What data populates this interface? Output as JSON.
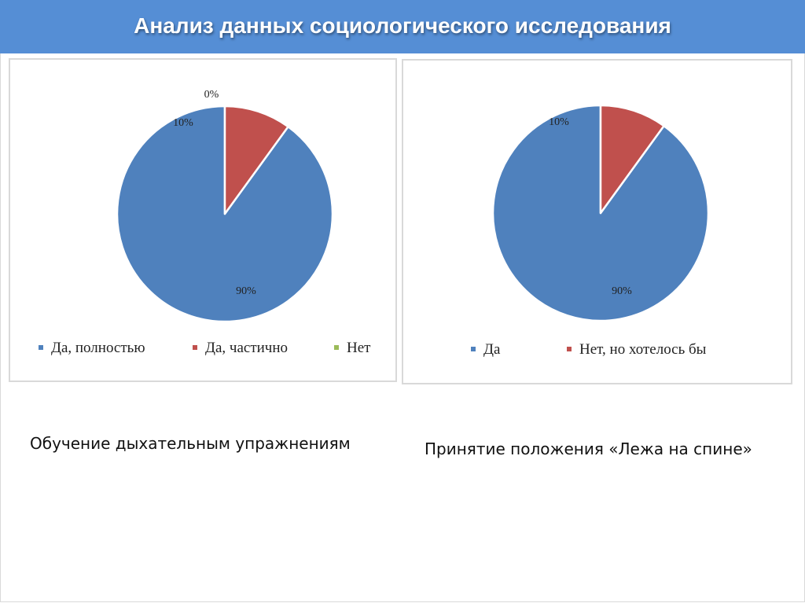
{
  "slide": {
    "title": "Анализ данных социологического исследования",
    "captions": [
      "Обучение дыхательным упражнениям",
      "Принятие положения «Лежа на спине»"
    ]
  },
  "colors": {
    "header": "#558ed5",
    "blue": "#4f81bd",
    "red": "#c0504d",
    "green": "#9bbb59"
  },
  "chart_data": [
    {
      "type": "pie",
      "categories": [
        "Да, полностью",
        "Да, частично",
        "Нет"
      ],
      "values": [
        90,
        10,
        0
      ],
      "labels": [
        "90%",
        "10%",
        "0%"
      ],
      "colors": [
        "#4f81bd",
        "#c0504d",
        "#9bbb59"
      ],
      "legend": "bottom"
    },
    {
      "type": "pie",
      "categories": [
        "Да",
        "Нет, но хотелось бы"
      ],
      "values": [
        90,
        10
      ],
      "labels": [
        "90%",
        "10%"
      ],
      "colors": [
        "#4f81bd",
        "#c0504d"
      ],
      "legend": "bottom"
    }
  ]
}
